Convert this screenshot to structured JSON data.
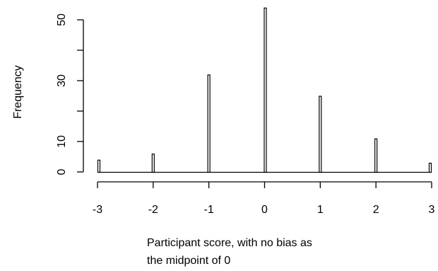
{
  "chart_data": {
    "type": "bar",
    "x": [
      -3,
      -2,
      -1,
      0,
      1,
      2,
      3
    ],
    "values": [
      4,
      6,
      32,
      54,
      25,
      11,
      3
    ],
    "xlabel_lines": [
      "Participant score, with no bias as",
      "the midpoint of 0"
    ],
    "ylabel": "Frequency",
    "x_ticks": [
      "-3",
      "-2",
      "-1",
      "0",
      "1",
      "2",
      "3"
    ],
    "y_ticks": [
      "0",
      "10",
      "30",
      "50"
    ],
    "xlim": [
      -3,
      3
    ],
    "ylim": [
      0,
      54
    ],
    "grid": false,
    "colors": {
      "bar_fill": "#ffffff",
      "bar_stroke": "#000000",
      "axis": "#000000"
    }
  }
}
